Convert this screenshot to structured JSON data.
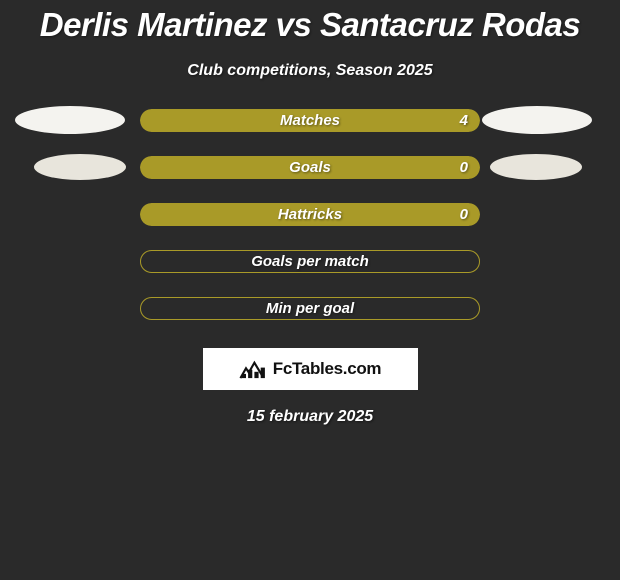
{
  "title": "Derlis Martinez vs Santacruz Rodas",
  "subtitle": "Club competitions, Season 2025",
  "date": "15 february 2025",
  "badge": {
    "text": "FcTables.com",
    "icon_bar_color": "#111111"
  },
  "colors": {
    "background": "#2a2a2a",
    "bar_filled": "#a99a28",
    "bar_border": "#a99a28",
    "ellipse_light": "#f4f3ef",
    "ellipse_mid": "#e0ddd5",
    "text": "#ffffff"
  },
  "stats": [
    {
      "label": "Matches",
      "value": "4",
      "show_value": true,
      "fill_pct": 100,
      "filled": true,
      "ellipse_left": {
        "show": true,
        "size": "large",
        "color": "#f4f3ef"
      },
      "ellipse_right": {
        "show": true,
        "size": "large",
        "color": "#f4f3ef"
      }
    },
    {
      "label": "Goals",
      "value": "0",
      "show_value": true,
      "fill_pct": 100,
      "filled": true,
      "ellipse_left": {
        "show": true,
        "size": "small",
        "color": "#e8e5dc"
      },
      "ellipse_right": {
        "show": true,
        "size": "small",
        "color": "#e8e5dc"
      }
    },
    {
      "label": "Hattricks",
      "value": "0",
      "show_value": true,
      "fill_pct": 100,
      "filled": true,
      "ellipse_left": {
        "show": false
      },
      "ellipse_right": {
        "show": false
      }
    },
    {
      "label": "Goals per match",
      "value": "",
      "show_value": false,
      "fill_pct": 0,
      "filled": false,
      "ellipse_left": {
        "show": false
      },
      "ellipse_right": {
        "show": false
      }
    },
    {
      "label": "Min per goal",
      "value": "",
      "show_value": false,
      "fill_pct": 0,
      "filled": false,
      "ellipse_left": {
        "show": false
      },
      "ellipse_right": {
        "show": false
      }
    }
  ]
}
